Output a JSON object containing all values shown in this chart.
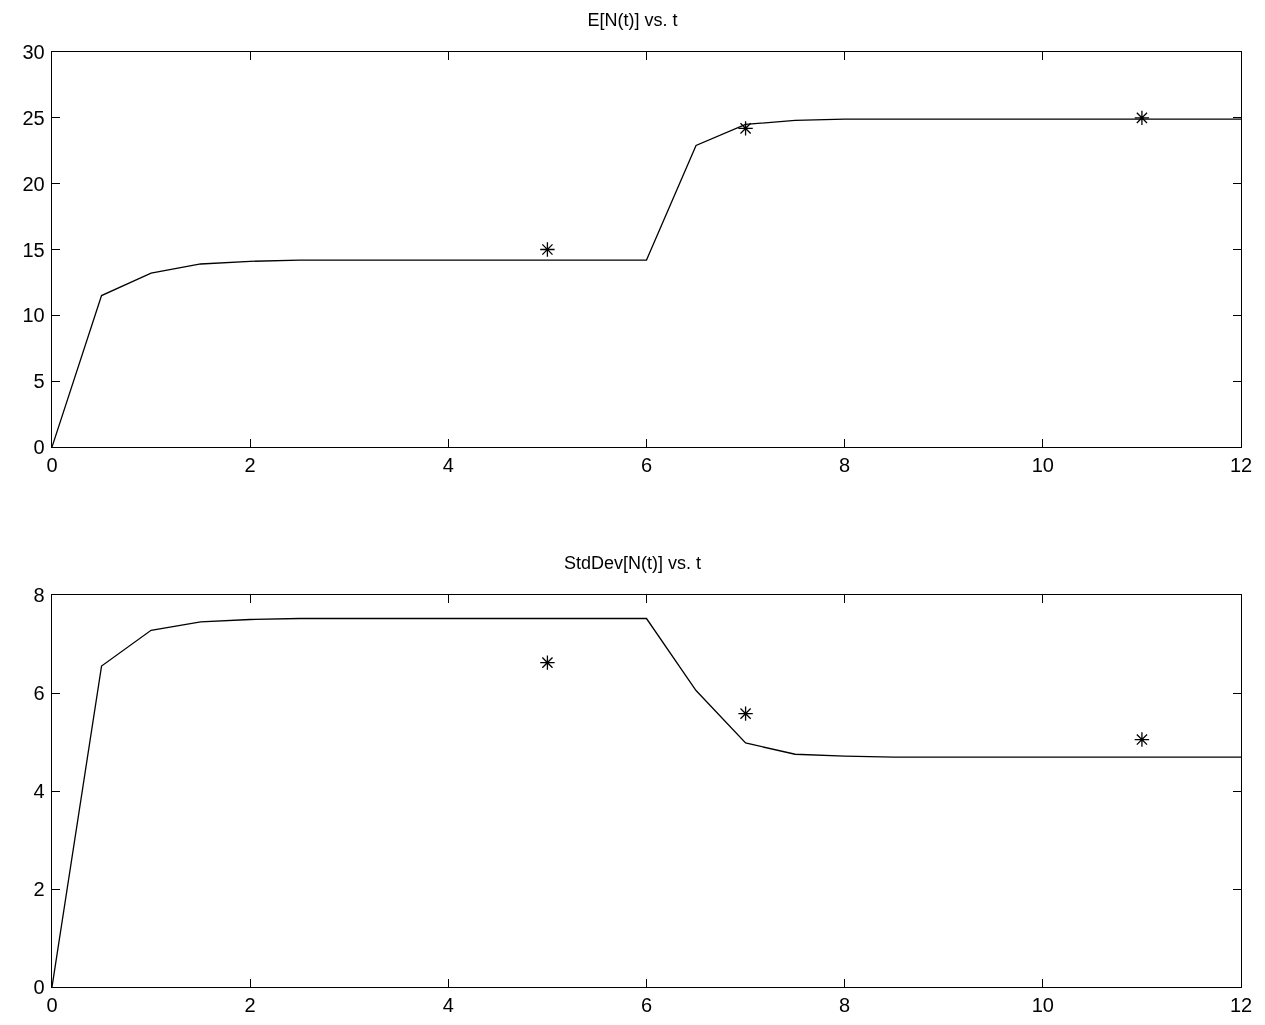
{
  "chart_data": [
    {
      "type": "line",
      "title": "E[N(t)] vs. t",
      "xlim": [
        0,
        12
      ],
      "xticks": [
        0,
        2,
        4,
        6,
        8,
        10,
        12
      ],
      "ylim": [
        0,
        30
      ],
      "yticks": [
        0,
        5,
        10,
        15,
        20,
        25,
        30
      ],
      "grid": false,
      "line_style": "solid",
      "series": [
        {
          "color": "#000000",
          "x": [
            0,
            0.5,
            1,
            1.5,
            2,
            2.5,
            3,
            3.5,
            4,
            4.5,
            5,
            5.5,
            6,
            6.5,
            7,
            7.5,
            8,
            8.5,
            9,
            9.5,
            10,
            10.5,
            11,
            11.5,
            12
          ],
          "values": [
            0,
            11.5,
            13.2,
            13.9,
            14.1,
            14.2,
            14.2,
            14.2,
            14.2,
            14.2,
            14.2,
            14.2,
            14.2,
            22.9,
            24.5,
            24.8,
            24.9,
            24.9,
            24.9,
            24.9,
            24.9,
            24.9,
            24.9,
            24.9,
            24.9
          ]
        },
        {
          "type": "scatter",
          "color": "#000000",
          "marker": "cross",
          "x": [
            5,
            7,
            11
          ],
          "values": [
            15.0,
            24.2,
            25.0
          ]
        }
      ]
    },
    {
      "type": "line",
      "title": "StdDev[N(t)] vs. t",
      "xlim": [
        0,
        12
      ],
      "xticks": [
        0,
        2,
        4,
        6,
        8,
        10,
        12
      ],
      "ylim": [
        0,
        8
      ],
      "yticks": [
        0,
        2,
        4,
        6,
        8
      ],
      "grid": false,
      "line_style": "solid",
      "series": [
        {
          "color": "#000000",
          "x": [
            0,
            0.5,
            1,
            1.5,
            2,
            2.5,
            3,
            3.5,
            4,
            4.5,
            5,
            5.5,
            6,
            6.5,
            7,
            7.5,
            8,
            8.5,
            9,
            9.5,
            10,
            10.5,
            11,
            11.5,
            12
          ],
          "values": [
            0,
            6.55,
            7.28,
            7.45,
            7.5,
            7.52,
            7.52,
            7.52,
            7.52,
            7.52,
            7.52,
            7.52,
            7.52,
            6.05,
            4.98,
            4.75,
            4.71,
            4.69,
            4.69,
            4.69,
            4.69,
            4.69,
            4.69,
            4.69,
            4.69
          ]
        },
        {
          "type": "scatter",
          "color": "#000000",
          "marker": "cross",
          "x": [
            5,
            7,
            11
          ],
          "values": [
            6.62,
            5.58,
            5.05
          ]
        }
      ]
    }
  ]
}
